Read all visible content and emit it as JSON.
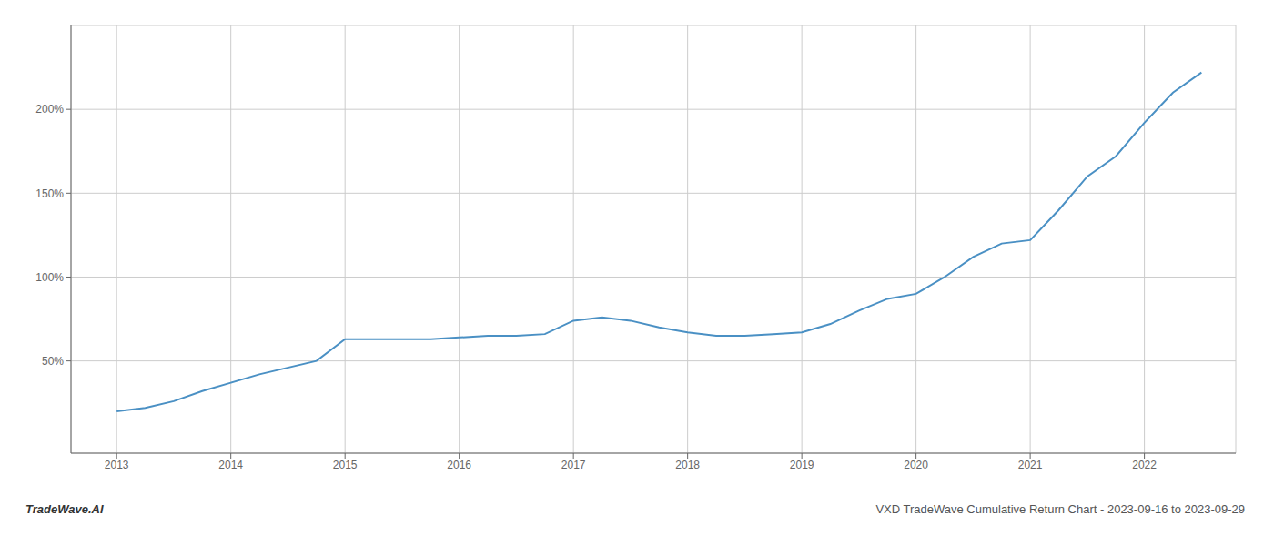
{
  "chart_data": {
    "type": "line",
    "title": "VXD TradeWave Cumulative Return Chart - 2023-09-16 to 2023-09-29",
    "annotations": [
      "TradeWave.AI"
    ],
    "x": [
      2013.0,
      2013.25,
      2013.5,
      2013.75,
      2014.0,
      2014.25,
      2014.75,
      2015.0,
      2015.25,
      2015.5,
      2015.75,
      2016.0,
      2016.25,
      2016.5,
      2016.75,
      2017.0,
      2017.25,
      2017.5,
      2017.75,
      2018.0,
      2018.25,
      2018.5,
      2018.75,
      2019.0,
      2019.25,
      2019.5,
      2019.75,
      2020.0,
      2020.25,
      2020.5,
      2020.75,
      2021.0,
      2021.25,
      2021.5,
      2021.75,
      2022.0,
      2022.25,
      2022.5
    ],
    "values": [
      20,
      22,
      26,
      32,
      37,
      42,
      50,
      63,
      63,
      63,
      63,
      64,
      65,
      65,
      66,
      74,
      76,
      74,
      70,
      67,
      65,
      65,
      66,
      67,
      72,
      80,
      87,
      90,
      100,
      112,
      120,
      122,
      140,
      160,
      172,
      192,
      210,
      222
    ],
    "color": "#4a90c4",
    "xlim": [
      2012.6,
      2022.8
    ],
    "xticks": [
      2013,
      2014,
      2015,
      2016,
      2017,
      2018,
      2019,
      2020,
      2021,
      2022
    ],
    "ylim": [
      -5,
      250
    ],
    "yticks": [
      {
        "value": 50,
        "label": "50%"
      },
      {
        "value": 100,
        "label": "100%"
      },
      {
        "value": 150,
        "label": "150%"
      },
      {
        "value": 200,
        "label": "200%"
      }
    ],
    "grid": true
  }
}
